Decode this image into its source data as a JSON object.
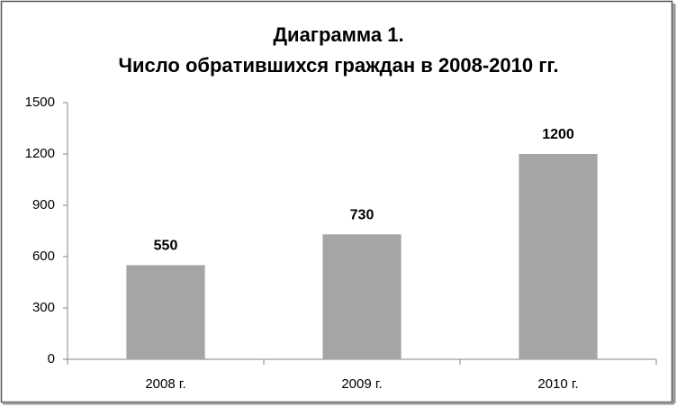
{
  "chart_data": {
    "type": "bar",
    "title": [
      "Диаграмма 1.",
      "Число обратившихся граждан в 2008-2010 гг."
    ],
    "categories": [
      "2008 г.",
      "2009 г.",
      "2010 г."
    ],
    "values": [
      550,
      730,
      1200
    ],
    "color": "#a5a5a5",
    "ylim": [
      0,
      1500
    ],
    "yticks": [
      0,
      300,
      600,
      900,
      1200,
      1500
    ],
    "grid": false
  }
}
